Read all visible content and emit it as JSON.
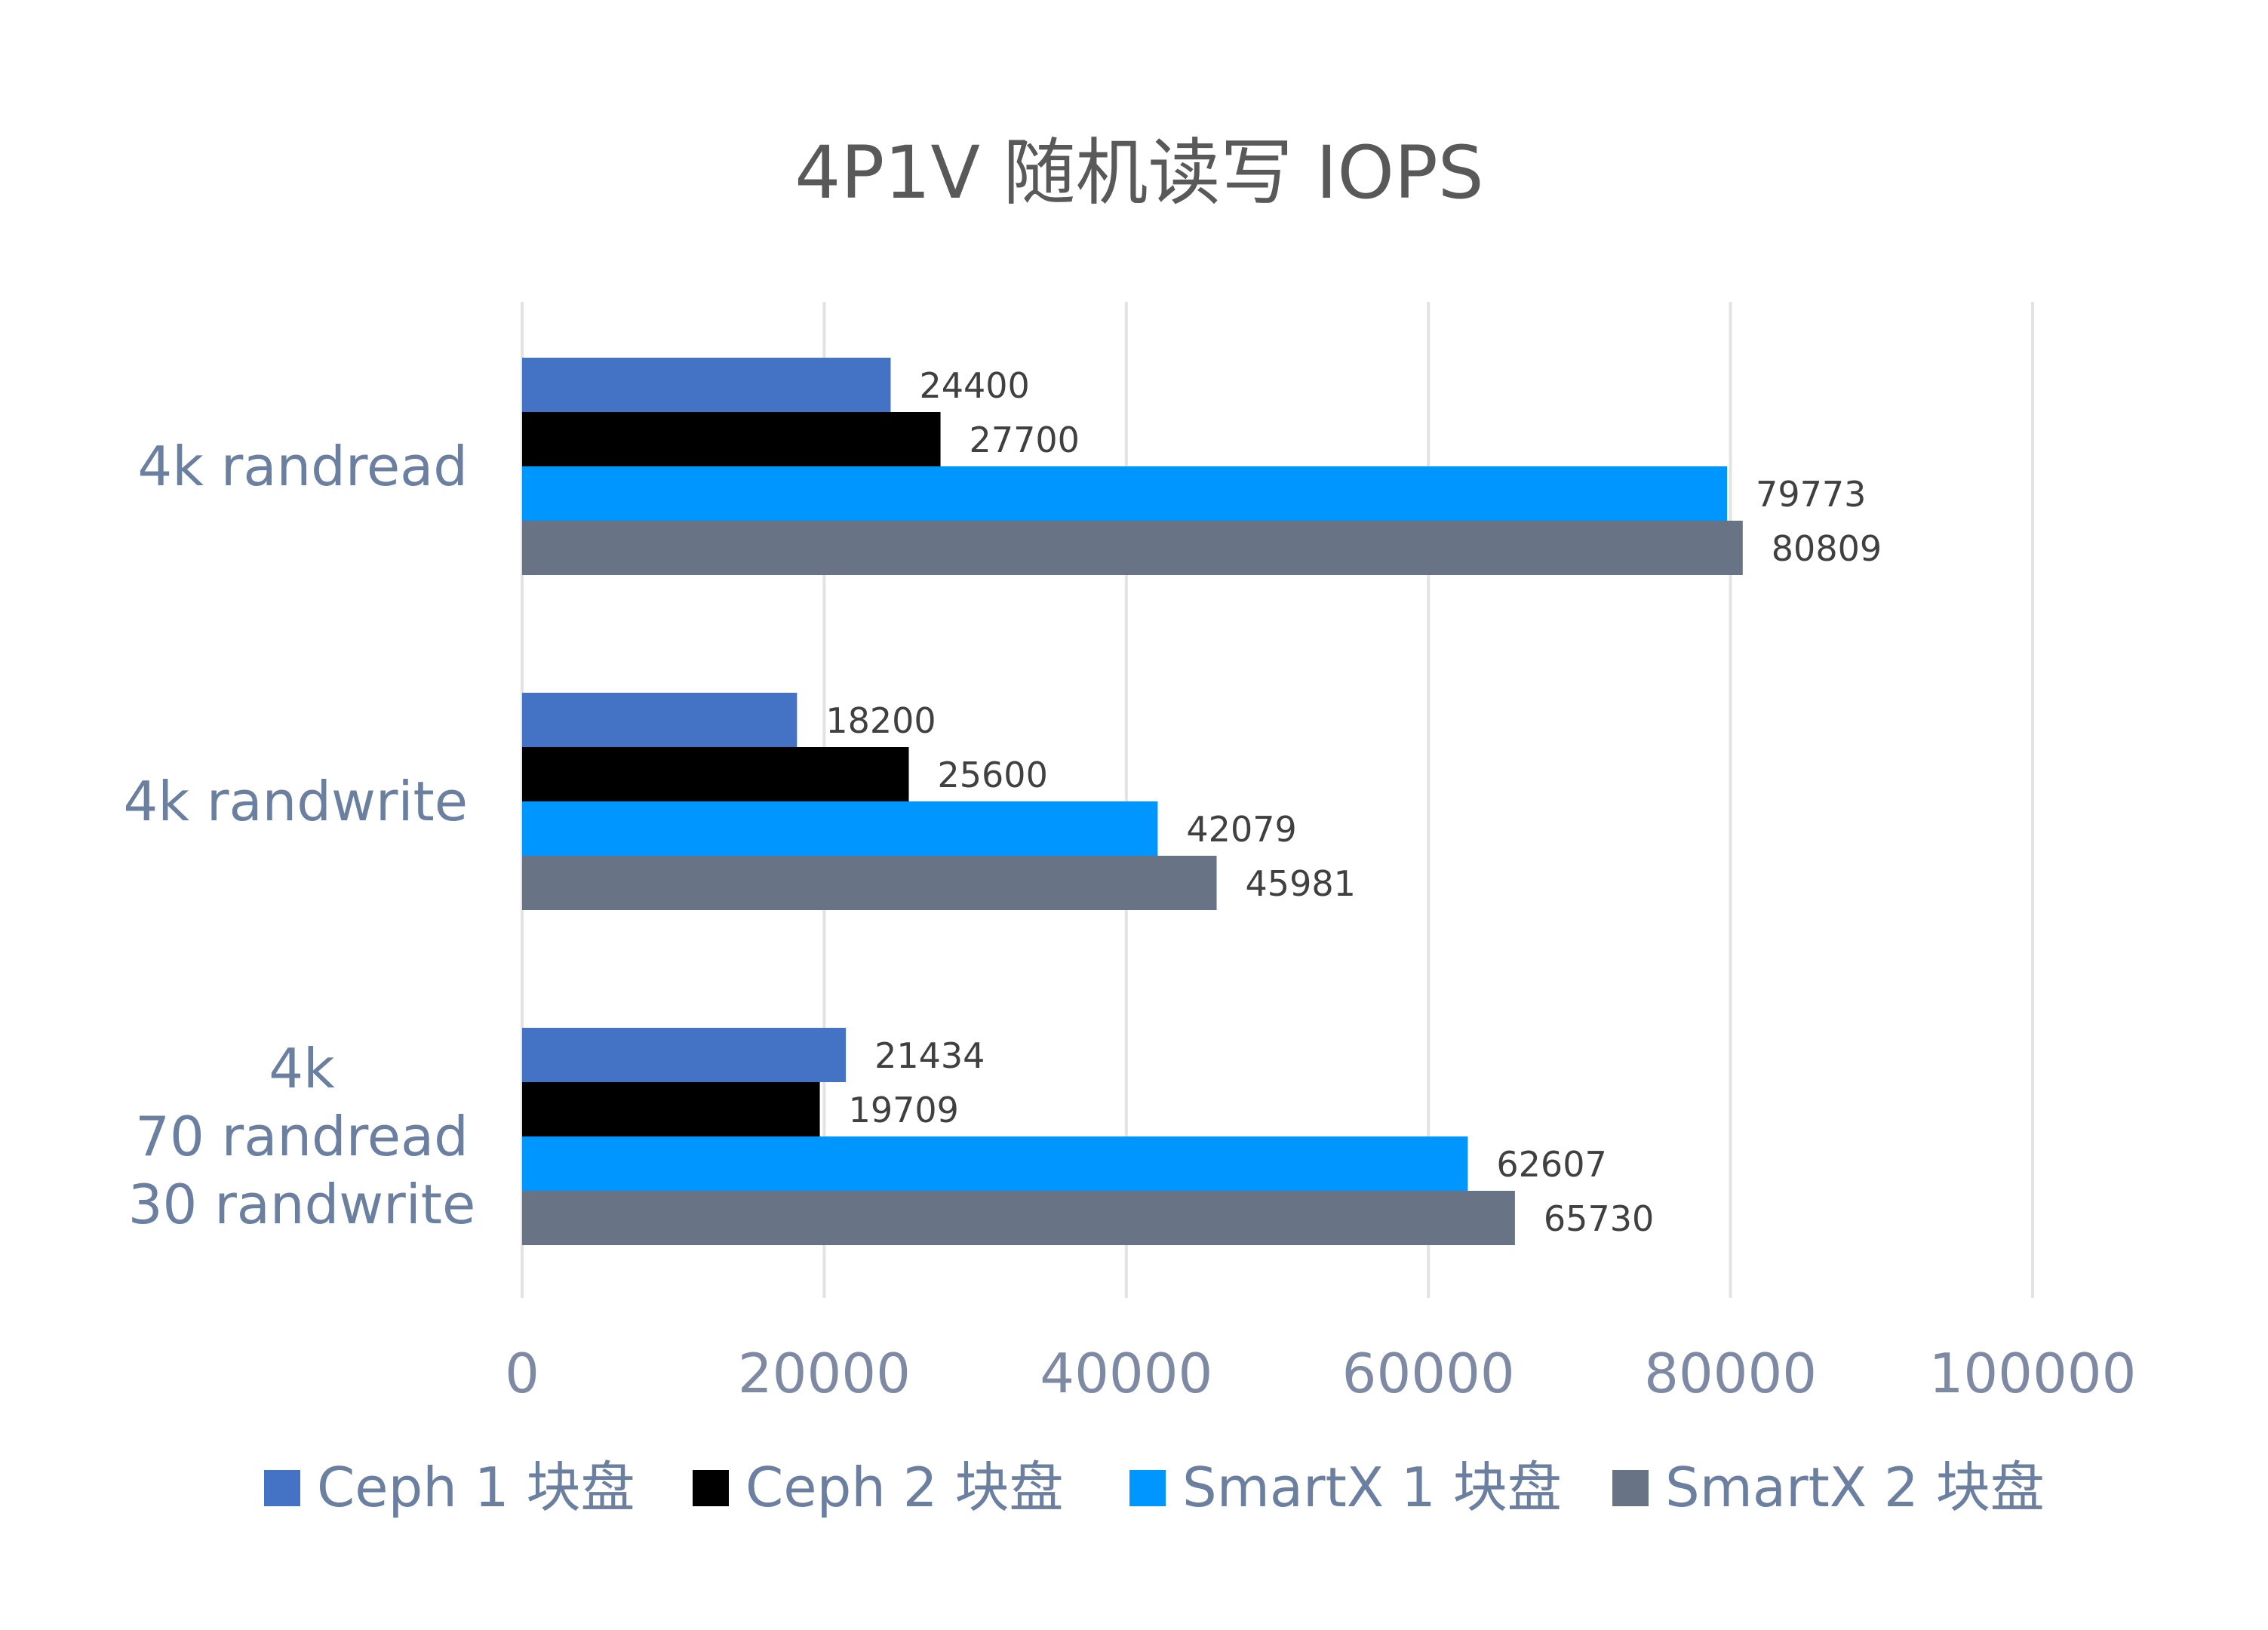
{
  "chart_data": {
    "type": "bar",
    "orientation": "horizontal",
    "title": "4P1V 随机读写 IOPS",
    "categories": [
      [
        "4k randread"
      ],
      [
        "4k randwrite"
      ],
      [
        "4k",
        "70 randread",
        "30 randwrite"
      ]
    ],
    "series": [
      {
        "name": "Ceph 1 块盘",
        "color": "#4472c4",
        "values": [
          24400,
          18200,
          21434
        ]
      },
      {
        "name": "Ceph 2 块盘",
        "color": "#000000",
        "values": [
          27700,
          25600,
          19709
        ]
      },
      {
        "name": "SmartX 1 块盘",
        "color": "#0096ff",
        "values": [
          79773,
          42079,
          62607
        ]
      },
      {
        "name": "SmartX 2 块盘",
        "color": "#687386",
        "values": [
          80809,
          45981,
          65730
        ]
      }
    ],
    "xlim": [
      0,
      100000
    ],
    "xticks": [
      0,
      20000,
      40000,
      60000,
      80000,
      100000
    ],
    "grid": true,
    "legend_position": "bottom"
  }
}
